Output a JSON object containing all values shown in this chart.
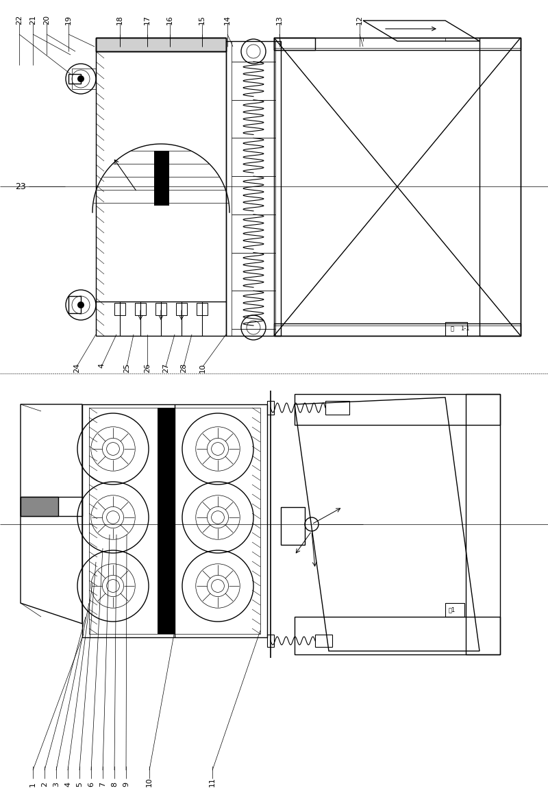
{
  "bg_color": "#ffffff",
  "line_color": "#000000",
  "fig_width": 8.0,
  "fig_height": 11.63,
  "dpi": 100
}
